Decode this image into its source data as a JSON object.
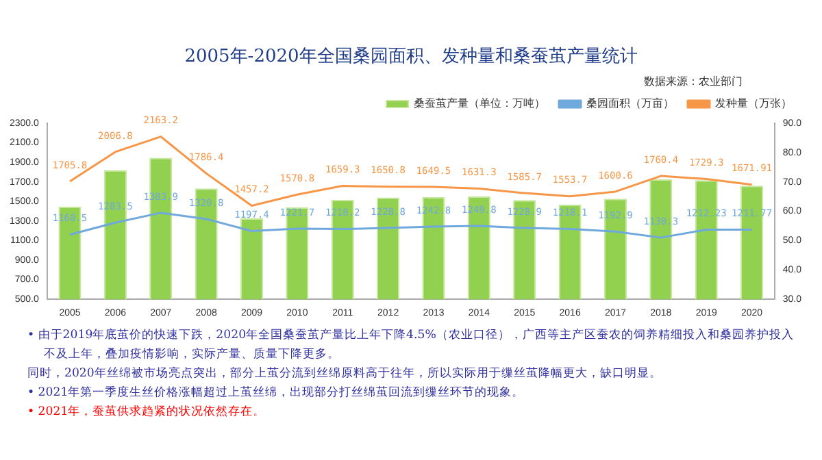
{
  "chart_data": {
    "type": "bar",
    "title": "2005年-2020年全国桑园面积、发种量和桑蚕茧产量统计",
    "categories": [
      "2005",
      "2006",
      "2007",
      "2008",
      "2009",
      "2010",
      "2011",
      "2012",
      "2013",
      "2014",
      "2015",
      "2016",
      "2017",
      "2018",
      "2019",
      "2020"
    ],
    "series": [
      {
        "name": "桑蚕茧产量（单位：万吨）",
        "axis": "y2",
        "color": "#92d050",
        "values": [
          61.6,
          74.0,
          78.2,
          67.8,
          57.6,
          61.3,
          63.9,
          64.7,
          64.8,
          65.1,
          63.8,
          62.3,
          64.3,
          70.9,
          70.6,
          68.7
        ]
      },
      {
        "name": "桑园面积（万亩）",
        "type": "line",
        "color": "#6fa8dc",
        "values": [
          1160.5,
          1283.5,
          1383.9,
          1320.8,
          1197.4,
          1221.7,
          1218.2,
          1228.8,
          1242.8,
          1249.8,
          1228.9,
          1218.1,
          1192.9,
          1130.3,
          1212.23,
          1211.77
        ],
        "value_labels": [
          "1160.5",
          "1283.5",
          "1383.9",
          "1320.8",
          "1197.4",
          "1221.7",
          "1218.2",
          "1228.8",
          "1242.8",
          "1249.8",
          "1228.9",
          "1218.1",
          "1192.9",
          "1130.3",
          "1212.23",
          "1211.77"
        ]
      },
      {
        "name": "发种量（万张）",
        "type": "line",
        "color": "#f79646",
        "values": [
          1705.8,
          2006.8,
          2163.2,
          1786.4,
          1457.2,
          1570.8,
          1659.3,
          1650.8,
          1649.5,
          1631.3,
          1585.7,
          1553.7,
          1600.6,
          1760.4,
          1729.3,
          1671.91
        ],
        "value_labels": [
          "1705.8",
          "2006.8",
          "2163.2",
          "1786.4",
          "1457.2",
          "1570.8",
          "1659.3",
          "1650.8",
          "1649.5",
          "1631.3",
          "1585.7",
          "1553.7",
          "1600.6",
          "1760.4",
          "1729.3",
          "1671.91"
        ]
      }
    ],
    "ylim": [
      500,
      2300
    ],
    "yticks": [
      {
        "value": 500,
        "label": "500.0"
      },
      {
        "value": 700,
        "label": "700.0"
      },
      {
        "value": 900,
        "label": "900.0"
      },
      {
        "value": 1100,
        "label": "1100.0"
      },
      {
        "value": 1300,
        "label": "1300.0"
      },
      {
        "value": 1500,
        "label": "1500.0"
      },
      {
        "value": 1700,
        "label": "1700.0"
      },
      {
        "value": 1900,
        "label": "1900.0"
      },
      {
        "value": 2100,
        "label": "2100.0"
      },
      {
        "value": 2300,
        "label": "2300.0"
      }
    ],
    "y2lim": [
      30,
      90
    ],
    "y2ticks": [
      {
        "value": 30,
        "label": "30.0"
      },
      {
        "value": 40,
        "label": "40.0"
      },
      {
        "value": 50,
        "label": "50.0"
      },
      {
        "value": 60,
        "label": "60.0"
      },
      {
        "value": 70,
        "label": "70.0"
      },
      {
        "value": 80,
        "label": "80.0"
      },
      {
        "value": 90,
        "label": "90.0"
      }
    ],
    "legend": "top right",
    "marker": "none",
    "line_style": "solid",
    "annotations": [
      "数据来源：农业部门",
      "• 由于2019年底茧价的快速下跌，2020年全国桑蚕茧产量比上年下降4.5%（农业口径），广西等主产区蚕农的饲养精细投入和桑园养护投入不及上年，叠加疫情影响，实际产量、质量下降更多。",
      "同时，2020年丝绵被市场亮点突出，部分上茧分流到丝绵原料高于往年，所以实际用于缫丝茧降幅更大，缺口明显。",
      "• 2021年第一季度生丝价格涨幅超过上茧丝绵，出现部分打丝绵茧回流到缫丝环节的现象。",
      "• 2021年，蚕茧供求趋紧的状况依然存在。"
    ]
  }
}
